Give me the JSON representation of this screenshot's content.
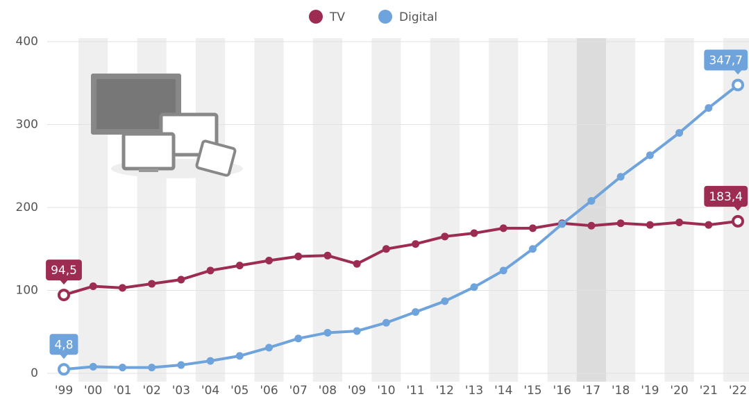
{
  "chart_data": {
    "type": "line",
    "categories": [
      "'99",
      "'00",
      "'01",
      "'02",
      "'03",
      "'04",
      "'05",
      "'06",
      "'07",
      "'08",
      "'09",
      "'10",
      "'11",
      "'12",
      "'13",
      "'14",
      "'15",
      "'16",
      "'17",
      "'18",
      "'19",
      "'20",
      "'21",
      "'22"
    ],
    "series": [
      {
        "name": "TV",
        "color": "#9c2c52",
        "values": [
          94.5,
          105,
          103,
          108,
          113,
          124,
          130,
          136,
          141,
          142,
          132,
          150,
          156,
          165,
          169,
          175,
          175,
          181,
          178,
          181,
          179,
          182,
          179,
          183.4
        ],
        "value_labels": [
          "94,5",
          null,
          null,
          null,
          null,
          null,
          null,
          null,
          null,
          null,
          null,
          null,
          null,
          null,
          null,
          null,
          null,
          null,
          null,
          null,
          null,
          null,
          null,
          "183,4"
        ]
      },
      {
        "name": "Digital",
        "color": "#6fa3dc",
        "values": [
          4.8,
          8,
          7,
          7,
          10,
          15,
          21,
          31,
          42,
          49,
          51,
          61,
          74,
          87,
          104,
          124,
          150,
          180,
          208,
          237,
          263,
          290,
          320,
          347.7
        ],
        "value_labels": [
          "4,8",
          null,
          null,
          null,
          null,
          null,
          null,
          null,
          null,
          null,
          null,
          null,
          null,
          null,
          null,
          null,
          null,
          null,
          null,
          null,
          null,
          null,
          null,
          "347,7"
        ]
      }
    ],
    "ylim": [
      0,
      400
    ],
    "yticks": [
      0,
      100,
      200,
      300,
      400
    ],
    "grid": true
  }
}
